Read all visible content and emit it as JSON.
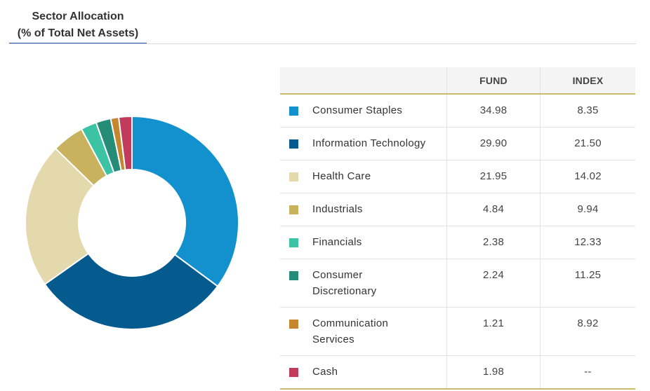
{
  "header": {
    "title_line1": "Sector Allocation",
    "title_line2": "(% of Total Net Assets)"
  },
  "table": {
    "col_fund": "FUND",
    "col_index": "INDEX"
  },
  "chart_data": {
    "type": "pie",
    "variant": "donut",
    "title": "Sector Allocation (% of Total Net Assets)",
    "columns": [
      "FUND",
      "INDEX"
    ],
    "rows": [
      {
        "sector": "Consumer Staples",
        "fund": "34.98",
        "index": "8.35",
        "color": "#1391cf"
      },
      {
        "sector": "Information Technology",
        "fund": "29.90",
        "index": "21.50",
        "color": "#055a8e"
      },
      {
        "sector": "Health Care",
        "fund": "21.95",
        "index": "14.02",
        "color": "#e4d8ad"
      },
      {
        "sector": "Industrials",
        "fund": "4.84",
        "index": "9.94",
        "color": "#c8b25e"
      },
      {
        "sector": "Financials",
        "fund": "2.38",
        "index": "12.33",
        "color": "#3bc3a4"
      },
      {
        "sector": "Consumer Discretionary",
        "fund": "2.24",
        "index": "11.25",
        "color": "#258c78"
      },
      {
        "sector": "Communication Services",
        "fund": "1.21",
        "index": "8.92",
        "color": "#c5862e"
      },
      {
        "sector": "Cash",
        "fund": "1.98",
        "index": "--",
        "color": "#c23b5c"
      }
    ]
  }
}
